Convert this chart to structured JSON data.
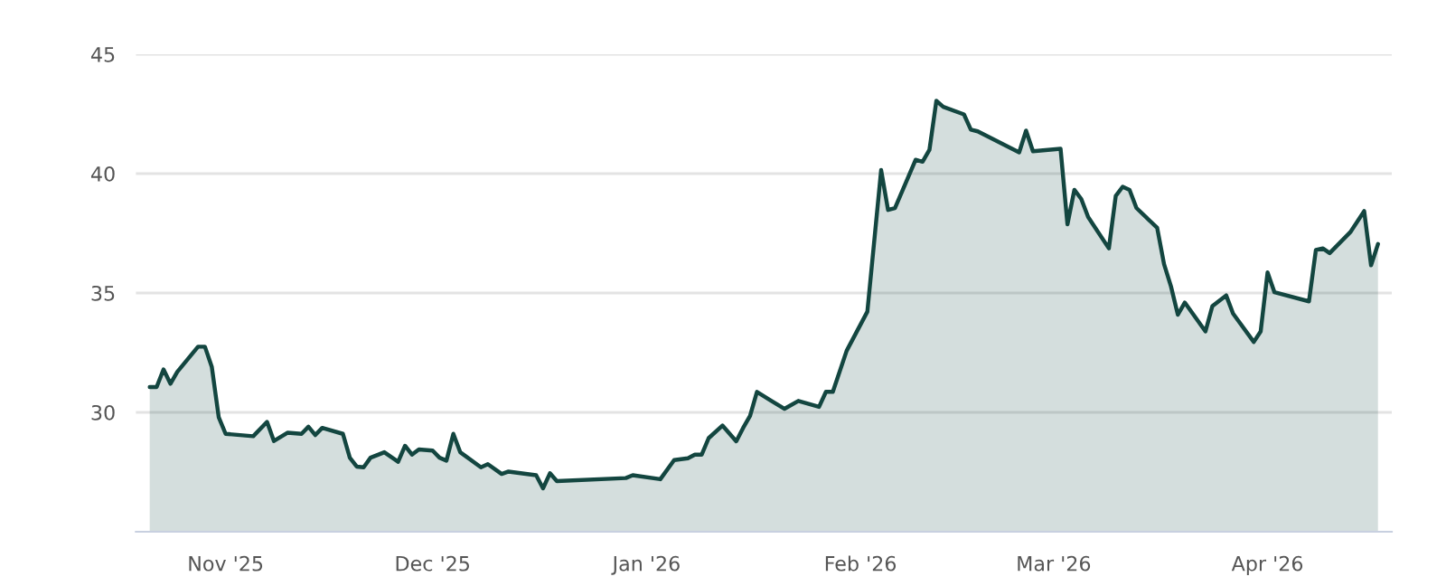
{
  "chart_data": {
    "type": "area",
    "x": [
      "2025-10-21",
      "2025-10-22",
      "2025-10-23",
      "2025-10-24",
      "2025-10-25",
      "2025-10-28",
      "2025-10-29",
      "2025-10-30",
      "2025-10-31",
      "2025-11-01",
      "2025-11-05",
      "2025-11-07",
      "2025-11-08",
      "2025-11-10",
      "2025-11-12",
      "2025-11-13",
      "2025-11-14",
      "2025-11-15",
      "2025-11-18",
      "2025-11-19",
      "2025-11-20",
      "2025-11-21",
      "2025-11-22",
      "2025-11-24",
      "2025-11-26",
      "2025-11-27",
      "2025-11-28",
      "2025-11-29",
      "2025-12-01",
      "2025-12-02",
      "2025-12-03",
      "2025-12-04",
      "2025-12-05",
      "2025-12-08",
      "2025-12-09",
      "2025-12-11",
      "2025-12-12",
      "2025-12-16",
      "2025-12-17",
      "2025-12-18",
      "2025-12-19",
      "2025-12-29",
      "2025-12-30",
      "2026-01-03",
      "2026-01-05",
      "2026-01-07",
      "2026-01-08",
      "2026-01-09",
      "2026-01-10",
      "2026-01-12",
      "2026-01-14",
      "2026-01-15",
      "2026-01-16",
      "2026-01-17",
      "2026-01-19",
      "2026-01-21",
      "2026-01-23",
      "2026-01-26",
      "2026-01-27",
      "2026-01-28",
      "2026-01-30",
      "2026-02-02",
      "2026-02-04",
      "2026-02-05",
      "2026-02-06",
      "2026-02-09",
      "2026-02-10",
      "2026-02-11",
      "2026-02-12",
      "2026-02-13",
      "2026-02-16",
      "2026-02-17",
      "2026-02-18",
      "2026-02-24",
      "2026-02-25",
      "2026-02-26",
      "2026-03-02",
      "2026-03-03",
      "2026-03-04",
      "2026-03-05",
      "2026-03-06",
      "2026-03-09",
      "2026-03-10",
      "2026-03-11",
      "2026-03-12",
      "2026-03-13",
      "2026-03-16",
      "2026-03-17",
      "2026-03-18",
      "2026-03-19",
      "2026-03-20",
      "2026-03-23",
      "2026-03-24",
      "2026-03-26",
      "2026-03-27",
      "2026-03-30",
      "2026-03-31",
      "2026-04-01",
      "2026-04-02",
      "2026-04-07",
      "2026-04-08",
      "2026-04-09",
      "2026-04-10",
      "2026-04-13",
      "2026-04-15",
      "2026-04-16",
      "2026-04-17"
    ],
    "series": [
      {
        "color": "#134640",
        "values": [
          31.06,
          31.06,
          31.8,
          31.2,
          31.7,
          32.75,
          32.75,
          31.9,
          29.8,
          29.1,
          29.0,
          29.6,
          28.8,
          29.15,
          29.1,
          29.4,
          29.05,
          29.35,
          29.1,
          28.1,
          27.73,
          27.7,
          28.1,
          28.33,
          27.93,
          28.6,
          28.23,
          28.45,
          28.4,
          28.1,
          27.98,
          29.1,
          28.33,
          27.7,
          27.83,
          27.42,
          27.52,
          27.37,
          26.82,
          27.45,
          27.12,
          27.25,
          27.37,
          27.2,
          28.0,
          28.08,
          28.23,
          28.23,
          28.92,
          29.45,
          28.79,
          29.35,
          29.85,
          30.86,
          30.5,
          30.15,
          30.48,
          30.23,
          30.86,
          30.86,
          32.58,
          34.22,
          40.15,
          38.48,
          38.56,
          40.58,
          40.5,
          41.0,
          43.05,
          42.8,
          42.48,
          41.84,
          41.77,
          40.89,
          41.8,
          40.94,
          41.04,
          37.88,
          39.32,
          38.94,
          38.18,
          36.87,
          39.07,
          39.45,
          39.32,
          38.56,
          37.73,
          36.21,
          35.28,
          34.09,
          34.6,
          33.39,
          34.45,
          34.9,
          34.14,
          32.95,
          33.39,
          35.86,
          35.03,
          34.65,
          36.8,
          36.87,
          36.67,
          37.55,
          38.43,
          36.16,
          37.05
        ]
      }
    ],
    "xlim": [
      "2025-10-19",
      "2026-04-19"
    ],
    "xticks": [
      {
        "value": "2025-11-01",
        "label": "Nov '25"
      },
      {
        "value": "2025-12-01",
        "label": "Dec '25"
      },
      {
        "value": "2026-01-01",
        "label": "Jan '26"
      },
      {
        "value": "2026-02-01",
        "label": "Feb '26"
      },
      {
        "value": "2026-03-01",
        "label": "Mar '26"
      },
      {
        "value": "2026-04-01",
        "label": "Apr '26"
      }
    ],
    "ylim": [
      25,
      45
    ],
    "yticks": [
      30,
      35,
      40,
      45
    ],
    "grid": "y",
    "legend": false,
    "marker": "none",
    "line_style": "solid"
  }
}
